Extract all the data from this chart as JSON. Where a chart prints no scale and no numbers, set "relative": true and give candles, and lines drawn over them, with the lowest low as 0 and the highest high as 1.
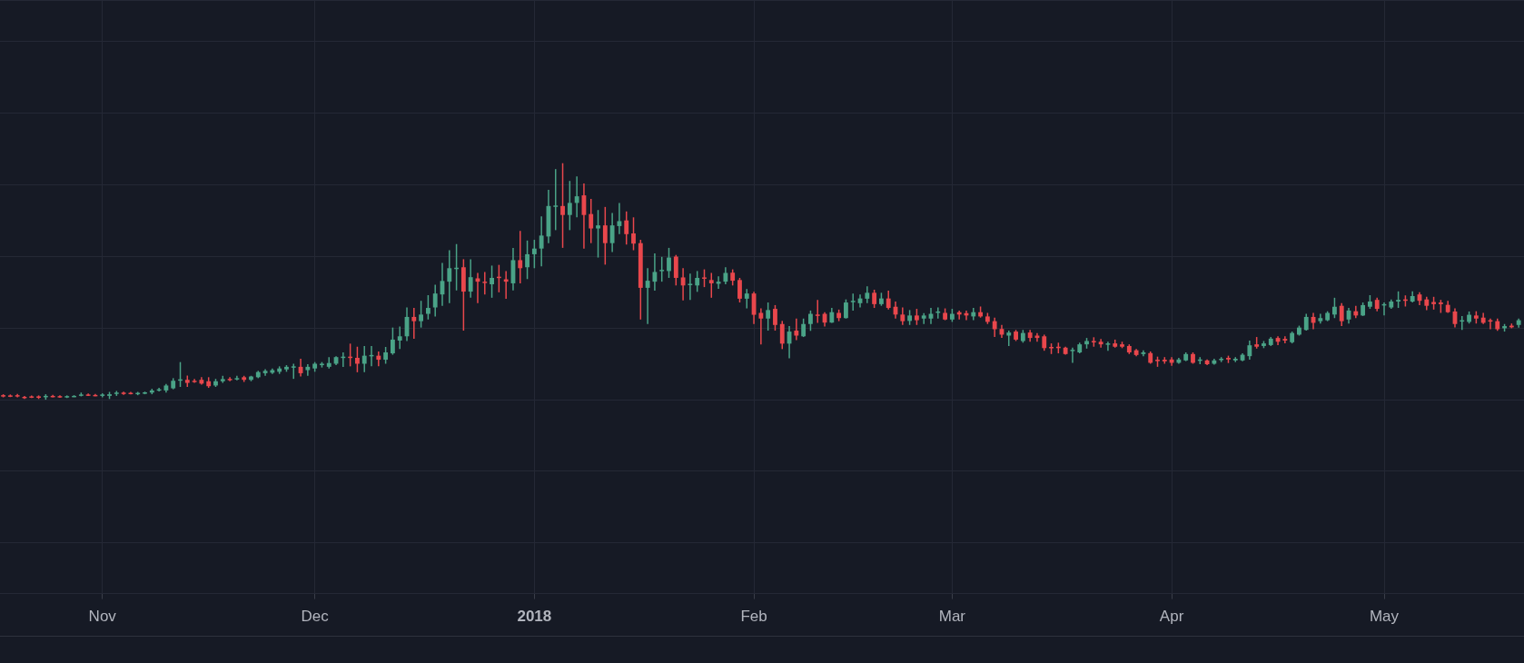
{
  "chart_data": {
    "type": "candlestick",
    "relative": true,
    "grid": true,
    "xlim": [
      "2017-10-17T13:00",
      "2018-05-20T18:00"
    ],
    "xticks": [
      {
        "value": "2017-11-01",
        "label": "Nov"
      },
      {
        "value": "2017-12-01",
        "label": "Dec"
      },
      {
        "value": "2018-01-01",
        "label": "2018"
      },
      {
        "value": "2018-02-01",
        "label": "Feb"
      },
      {
        "value": "2018-03-01",
        "label": "Mar"
      },
      {
        "value": "2018-04-01",
        "label": "Apr"
      },
      {
        "value": "2018-05-01",
        "label": "May"
      }
    ],
    "x": [
      "2017-10-18",
      "2017-10-19",
      "2017-10-20",
      "2017-10-21",
      "2017-10-22",
      "2017-10-23",
      "2017-10-24",
      "2017-10-25",
      "2017-10-26",
      "2017-10-27",
      "2017-10-28",
      "2017-10-29",
      "2017-10-30",
      "2017-10-31",
      "2017-11-01",
      "2017-11-02",
      "2017-11-03",
      "2017-11-04",
      "2017-11-05",
      "2017-11-06",
      "2017-11-07",
      "2017-11-08",
      "2017-11-09",
      "2017-11-10",
      "2017-11-11",
      "2017-11-12",
      "2017-11-13",
      "2017-11-14",
      "2017-11-15",
      "2017-11-16",
      "2017-11-17",
      "2017-11-18",
      "2017-11-19",
      "2017-11-20",
      "2017-11-21",
      "2017-11-22",
      "2017-11-23",
      "2017-11-24",
      "2017-11-25",
      "2017-11-26",
      "2017-11-27",
      "2017-11-28",
      "2017-11-29",
      "2017-11-30",
      "2017-12-01",
      "2017-12-02",
      "2017-12-03",
      "2017-12-04",
      "2017-12-05",
      "2017-12-06",
      "2017-12-07",
      "2017-12-08",
      "2017-12-09",
      "2017-12-10",
      "2017-12-11",
      "2017-12-12",
      "2017-12-13",
      "2017-12-14",
      "2017-12-15",
      "2017-12-16",
      "2017-12-17",
      "2017-12-18",
      "2017-12-19",
      "2017-12-20",
      "2017-12-21",
      "2017-12-22",
      "2017-12-23",
      "2017-12-24",
      "2017-12-25",
      "2017-12-26",
      "2017-12-27",
      "2017-12-28",
      "2017-12-29",
      "2017-12-30",
      "2017-12-31",
      "2018-01-01",
      "2018-01-02",
      "2018-01-03",
      "2018-01-04",
      "2018-01-05",
      "2018-01-06",
      "2018-01-07",
      "2018-01-08",
      "2018-01-09",
      "2018-01-10",
      "2018-01-11",
      "2018-01-12",
      "2018-01-13",
      "2018-01-14",
      "2018-01-15",
      "2018-01-16",
      "2018-01-17",
      "2018-01-18",
      "2018-01-19",
      "2018-01-20",
      "2018-01-21",
      "2018-01-22",
      "2018-01-23",
      "2018-01-24",
      "2018-01-25",
      "2018-01-26",
      "2018-01-27",
      "2018-01-28",
      "2018-01-29",
      "2018-01-30",
      "2018-01-31",
      "2018-02-01",
      "2018-02-02",
      "2018-02-03",
      "2018-02-04",
      "2018-02-05",
      "2018-02-06",
      "2018-02-07",
      "2018-02-08",
      "2018-02-09",
      "2018-02-10",
      "2018-02-11",
      "2018-02-12",
      "2018-02-13",
      "2018-02-14",
      "2018-02-15",
      "2018-02-16",
      "2018-02-17",
      "2018-02-18",
      "2018-02-19",
      "2018-02-20",
      "2018-02-21",
      "2018-02-22",
      "2018-02-23",
      "2018-02-24",
      "2018-02-25",
      "2018-02-26",
      "2018-02-27",
      "2018-02-28",
      "2018-03-01",
      "2018-03-02",
      "2018-03-03",
      "2018-03-04",
      "2018-03-05",
      "2018-03-06",
      "2018-03-07",
      "2018-03-08",
      "2018-03-09",
      "2018-03-10",
      "2018-03-11",
      "2018-03-12",
      "2018-03-13",
      "2018-03-14",
      "2018-03-15",
      "2018-03-16",
      "2018-03-17",
      "2018-03-18",
      "2018-03-19",
      "2018-03-20",
      "2018-03-21",
      "2018-03-22",
      "2018-03-23",
      "2018-03-24",
      "2018-03-25",
      "2018-03-26",
      "2018-03-27",
      "2018-03-28",
      "2018-03-29",
      "2018-03-30",
      "2018-03-31",
      "2018-04-01",
      "2018-04-02",
      "2018-04-03",
      "2018-04-04",
      "2018-04-05",
      "2018-04-06",
      "2018-04-07",
      "2018-04-08",
      "2018-04-09",
      "2018-04-10",
      "2018-04-11",
      "2018-04-12",
      "2018-04-13",
      "2018-04-14",
      "2018-04-15",
      "2018-04-16",
      "2018-04-17",
      "2018-04-18",
      "2018-04-19",
      "2018-04-20",
      "2018-04-21",
      "2018-04-22",
      "2018-04-23",
      "2018-04-24",
      "2018-04-25",
      "2018-04-26",
      "2018-04-27",
      "2018-04-28",
      "2018-04-29",
      "2018-04-30",
      "2018-05-01",
      "2018-05-02",
      "2018-05-03",
      "2018-05-04",
      "2018-05-05",
      "2018-05-06",
      "2018-05-07",
      "2018-05-08",
      "2018-05-09",
      "2018-05-10",
      "2018-05-11",
      "2018-05-12",
      "2018-05-13",
      "2018-05-14",
      "2018-05-15",
      "2018-05-16",
      "2018-05-17",
      "2018-05-18",
      "2018-05-19",
      "2018-05-20"
    ],
    "ohlc": [
      [
        0.019,
        0.023,
        0.01,
        0.014
      ],
      [
        0.018,
        0.022,
        0.011,
        0.014
      ],
      [
        0.019,
        0.024,
        0.01,
        0.014
      ],
      [
        0.012,
        0.016,
        0.003,
        0.008
      ],
      [
        0.014,
        0.018,
        0.007,
        0.011
      ],
      [
        0.014,
        0.018,
        0.003,
        0.008
      ],
      [
        0.014,
        0.023,
        0,
        0.016
      ],
      [
        0.016,
        0.02,
        0.01,
        0.014
      ],
      [
        0.015,
        0.019,
        0.008,
        0.011
      ],
      [
        0.011,
        0.018,
        0.007,
        0.015
      ],
      [
        0.015,
        0.019,
        0.011,
        0.016
      ],
      [
        0.019,
        0.03,
        0.014,
        0.022
      ],
      [
        0.022,
        0.026,
        0.016,
        0.019
      ],
      [
        0.02,
        0.024,
        0.015,
        0.018
      ],
      [
        0.016,
        0.027,
        0.01,
        0.022
      ],
      [
        0.016,
        0.033,
        0.003,
        0.023
      ],
      [
        0.027,
        0.037,
        0.016,
        0.03
      ],
      [
        0.03,
        0.034,
        0.02,
        0.024
      ],
      [
        0.029,
        0.033,
        0.022,
        0.024
      ],
      [
        0.023,
        0.033,
        0.019,
        0.029
      ],
      [
        0.027,
        0.034,
        0.023,
        0.031
      ],
      [
        0.03,
        0.046,
        0.023,
        0.039
      ],
      [
        0.039,
        0.05,
        0.035,
        0.044
      ],
      [
        0.039,
        0.067,
        0.03,
        0.06
      ],
      [
        0.048,
        0.091,
        0.044,
        0.08
      ],
      [
        0.082,
        0.159,
        0.054,
        0.086
      ],
      [
        0.084,
        0.102,
        0.054,
        0.071
      ],
      [
        0.08,
        0.088,
        0.071,
        0.075
      ],
      [
        0.084,
        0.095,
        0.064,
        0.068
      ],
      [
        0.078,
        0.095,
        0.05,
        0.057
      ],
      [
        0.06,
        0.088,
        0.054,
        0.078
      ],
      [
        0.078,
        0.101,
        0.071,
        0.087
      ],
      [
        0.088,
        0.095,
        0.078,
        0.083
      ],
      [
        0.087,
        0.101,
        0.082,
        0.091
      ],
      [
        0.095,
        0.101,
        0.075,
        0.084
      ],
      [
        0.084,
        0.101,
        0.078,
        0.098
      ],
      [
        0.095,
        0.122,
        0.091,
        0.117
      ],
      [
        0.112,
        0.129,
        0.101,
        0.122
      ],
      [
        0.114,
        0.132,
        0.109,
        0.125
      ],
      [
        0.118,
        0.141,
        0.109,
        0.132
      ],
      [
        0.128,
        0.146,
        0.118,
        0.139
      ],
      [
        0.136,
        0.152,
        0.088,
        0.141
      ],
      [
        0.139,
        0.173,
        0.098,
        0.112
      ],
      [
        0.125,
        0.15,
        0.101,
        0.139
      ],
      [
        0.132,
        0.159,
        0.118,
        0.152
      ],
      [
        0.146,
        0.159,
        0.136,
        0.152
      ],
      [
        0.139,
        0.18,
        0.132,
        0.155
      ],
      [
        0.152,
        0.184,
        0.146,
        0.18
      ],
      [
        0.177,
        0.2,
        0.139,
        0.182
      ],
      [
        0.182,
        0.237,
        0.141,
        0.177
      ],
      [
        0.177,
        0.224,
        0.116,
        0.152
      ],
      [
        0.152,
        0.227,
        0.116,
        0.186
      ],
      [
        0.185,
        0.227,
        0.141,
        0.189
      ],
      [
        0.186,
        0.204,
        0.141,
        0.169
      ],
      [
        0.169,
        0.223,
        0.152,
        0.2
      ],
      [
        0.196,
        0.305,
        0.19,
        0.254
      ],
      [
        0.25,
        0.309,
        0.214,
        0.268
      ],
      [
        0.268,
        0.39,
        0.248,
        0.35
      ],
      [
        0.35,
        0.388,
        0.258,
        0.332
      ],
      [
        0.332,
        0.418,
        0.305,
        0.36
      ],
      [
        0.363,
        0.442,
        0.339,
        0.388
      ],
      [
        0.39,
        0.486,
        0.352,
        0.449
      ],
      [
        0.445,
        0.578,
        0.397,
        0.502
      ],
      [
        0.499,
        0.632,
        0.408,
        0.556
      ],
      [
        0.554,
        0.658,
        0.462,
        0.558
      ],
      [
        0.56,
        0.594,
        0.292,
        0.457
      ],
      [
        0.457,
        0.594,
        0.431,
        0.518
      ],
      [
        0.513,
        0.536,
        0.408,
        0.499
      ],
      [
        0.499,
        0.54,
        0.445,
        0.495
      ],
      [
        0.488,
        0.567,
        0.431,
        0.515
      ],
      [
        0.52,
        0.57,
        0.454,
        0.515
      ],
      [
        0.509,
        0.544,
        0.427,
        0.499
      ],
      [
        0.492,
        0.642,
        0.462,
        0.59
      ],
      [
        0.59,
        0.714,
        0.492,
        0.556
      ],
      [
        0.56,
        0.673,
        0.51,
        0.615
      ],
      [
        0.615,
        0.676,
        0.556,
        0.639
      ],
      [
        0.639,
        0.775,
        0.564,
        0.694
      ],
      [
        0.69,
        0.887,
        0.662,
        0.819
      ],
      [
        0.819,
        0.975,
        0.717,
        0.821
      ],
      [
        0.819,
        1,
        0.642,
        0.781
      ],
      [
        0.781,
        0.925,
        0.717,
        0.832
      ],
      [
        0.832,
        0.944,
        0.771,
        0.86
      ],
      [
        0.864,
        0.914,
        0.639,
        0.781
      ],
      [
        0.785,
        0.849,
        0.662,
        0.724
      ],
      [
        0.724,
        0.802,
        0.601,
        0.737
      ],
      [
        0.737,
        0.815,
        0.571,
        0.662
      ],
      [
        0.662,
        0.789,
        0.624,
        0.737
      ],
      [
        0.734,
        0.832,
        0.7,
        0.755
      ],
      [
        0.758,
        0.796,
        0.656,
        0.7
      ],
      [
        0.703,
        0.771,
        0.632,
        0.66
      ],
      [
        0.662,
        0.676,
        0.339,
        0.473
      ],
      [
        0.473,
        0.556,
        0.32,
        0.503
      ],
      [
        0.499,
        0.619,
        0.461,
        0.54
      ],
      [
        0.547,
        0.604,
        0.499,
        0.549
      ],
      [
        0.544,
        0.642,
        0.515,
        0.601
      ],
      [
        0.605,
        0.612,
        0.483,
        0.515
      ],
      [
        0.517,
        0.556,
        0.42,
        0.483
      ],
      [
        0.486,
        0.533,
        0.422,
        0.49
      ],
      [
        0.483,
        0.544,
        0.456,
        0.515
      ],
      [
        0.517,
        0.551,
        0.476,
        0.514
      ],
      [
        0.506,
        0.536,
        0.431,
        0.492
      ],
      [
        0.49,
        0.522,
        0.469,
        0.499
      ],
      [
        0.499,
        0.56,
        0.488,
        0.536
      ],
      [
        0.537,
        0.551,
        0.483,
        0.503
      ],
      [
        0.506,
        0.515,
        0.411,
        0.427
      ],
      [
        0.427,
        0.468,
        0.386,
        0.449
      ],
      [
        0.449,
        0.456,
        0.32,
        0.359
      ],
      [
        0.367,
        0.386,
        0.234,
        0.343
      ],
      [
        0.343,
        0.411,
        0.292,
        0.379
      ],
      [
        0.384,
        0.4,
        0.292,
        0.316
      ],
      [
        0.32,
        0.333,
        0.214,
        0.237
      ],
      [
        0.237,
        0.311,
        0.175,
        0.288
      ],
      [
        0.292,
        0.343,
        0.252,
        0.271
      ],
      [
        0.268,
        0.343,
        0.265,
        0.32
      ],
      [
        0.32,
        0.377,
        0.291,
        0.363
      ],
      [
        0.36,
        0.422,
        0.325,
        0.356
      ],
      [
        0.363,
        0.37,
        0.309,
        0.326
      ],
      [
        0.326,
        0.388,
        0.325,
        0.37
      ],
      [
        0.367,
        0.381,
        0.332,
        0.345
      ],
      [
        0.345,
        0.424,
        0.343,
        0.411
      ],
      [
        0.413,
        0.449,
        0.377,
        0.418
      ],
      [
        0.408,
        0.445,
        0.39,
        0.428
      ],
      [
        0.427,
        0.479,
        0.408,
        0.452
      ],
      [
        0.452,
        0.465,
        0.388,
        0.404
      ],
      [
        0.404,
        0.452,
        0.397,
        0.428
      ],
      [
        0.428,
        0.461,
        0.381,
        0.388
      ],
      [
        0.393,
        0.415,
        0.343,
        0.36
      ],
      [
        0.36,
        0.39,
        0.316,
        0.332
      ],
      [
        0.333,
        0.379,
        0.316,
        0.356
      ],
      [
        0.356,
        0.384,
        0.316,
        0.336
      ],
      [
        0.343,
        0.366,
        0.32,
        0.356
      ],
      [
        0.343,
        0.388,
        0.32,
        0.363
      ],
      [
        0.367,
        0.39,
        0.343,
        0.373
      ],
      [
        0.367,
        0.386,
        0.336,
        0.339
      ],
      [
        0.339,
        0.384,
        0.329,
        0.363
      ],
      [
        0.37,
        0.377,
        0.339,
        0.36
      ],
      [
        0.366,
        0.377,
        0.336,
        0.356
      ],
      [
        0.352,
        0.388,
        0.336,
        0.37
      ],
      [
        0.37,
        0.394,
        0.347,
        0.352
      ],
      [
        0.352,
        0.367,
        0.32,
        0.329
      ],
      [
        0.332,
        0.347,
        0.265,
        0.298
      ],
      [
        0.299,
        0.316,
        0.261,
        0.275
      ],
      [
        0.271,
        0.292,
        0.227,
        0.284
      ],
      [
        0.288,
        0.295,
        0.248,
        0.254
      ],
      [
        0.248,
        0.295,
        0.241,
        0.282
      ],
      [
        0.284,
        0.295,
        0.245,
        0.261
      ],
      [
        0.271,
        0.282,
        0.245,
        0.261
      ],
      [
        0.268,
        0.275,
        0.207,
        0.218
      ],
      [
        0.223,
        0.238,
        0.193,
        0.22
      ],
      [
        0.224,
        0.241,
        0.196,
        0.218
      ],
      [
        0.22,
        0.224,
        0.19,
        0.193
      ],
      [
        0.207,
        0.22,
        0.156,
        0.211
      ],
      [
        0.2,
        0.241,
        0.196,
        0.234
      ],
      [
        0.234,
        0.261,
        0.216,
        0.248
      ],
      [
        0.248,
        0.264,
        0.224,
        0.245
      ],
      [
        0.245,
        0.257,
        0.22,
        0.234
      ],
      [
        0.234,
        0.245,
        0.207,
        0.238
      ],
      [
        0.238,
        0.254,
        0.22,
        0.224
      ],
      [
        0.234,
        0.245,
        0.218,
        0.224
      ],
      [
        0.227,
        0.234,
        0.193,
        0.2
      ],
      [
        0.209,
        0.214,
        0.184,
        0.189
      ],
      [
        0.193,
        0.209,
        0.184,
        0.2
      ],
      [
        0.197,
        0.204,
        0.152,
        0.156
      ],
      [
        0.169,
        0.182,
        0.139,
        0.163
      ],
      [
        0.169,
        0.18,
        0.152,
        0.162
      ],
      [
        0.17,
        0.18,
        0.143,
        0.156
      ],
      [
        0.156,
        0.177,
        0.152,
        0.17
      ],
      [
        0.166,
        0.2,
        0.163,
        0.193
      ],
      [
        0.193,
        0.2,
        0.152,
        0.156
      ],
      [
        0.166,
        0.18,
        0.15,
        0.17
      ],
      [
        0.166,
        0.17,
        0.146,
        0.15
      ],
      [
        0.152,
        0.173,
        0.148,
        0.166
      ],
      [
        0.17,
        0.18,
        0.159,
        0.173
      ],
      [
        0.177,
        0.186,
        0.155,
        0.17
      ],
      [
        0.166,
        0.18,
        0.159,
        0.173
      ],
      [
        0.166,
        0.196,
        0.163,
        0.19
      ],
      [
        0.184,
        0.25,
        0.169,
        0.23
      ],
      [
        0.234,
        0.265,
        0.216,
        0.224
      ],
      [
        0.227,
        0.248,
        0.218,
        0.238
      ],
      [
        0.231,
        0.265,
        0.227,
        0.258
      ],
      [
        0.261,
        0.268,
        0.231,
        0.245
      ],
      [
        0.257,
        0.268,
        0.238,
        0.25
      ],
      [
        0.243,
        0.288,
        0.238,
        0.282
      ],
      [
        0.275,
        0.313,
        0.271,
        0.305
      ],
      [
        0.295,
        0.363,
        0.292,
        0.35
      ],
      [
        0.35,
        0.367,
        0.298,
        0.325
      ],
      [
        0.332,
        0.363,
        0.322,
        0.345
      ],
      [
        0.336,
        0.374,
        0.332,
        0.367
      ],
      [
        0.36,
        0.431,
        0.345,
        0.393
      ],
      [
        0.397,
        0.408,
        0.311,
        0.332
      ],
      [
        0.339,
        0.388,
        0.322,
        0.377
      ],
      [
        0.374,
        0.397,
        0.345,
        0.356
      ],
      [
        0.356,
        0.411,
        0.354,
        0.4
      ],
      [
        0.393,
        0.442,
        0.384,
        0.415
      ],
      [
        0.422,
        0.431,
        0.374,
        0.384
      ],
      [
        0.401,
        0.411,
        0.356,
        0.404
      ],
      [
        0.39,
        0.424,
        0.384,
        0.415
      ],
      [
        0.415,
        0.458,
        0.388,
        0.422
      ],
      [
        0.424,
        0.441,
        0.394,
        0.418
      ],
      [
        0.415,
        0.458,
        0.411,
        0.438
      ],
      [
        0.445,
        0.454,
        0.4,
        0.418
      ],
      [
        0.424,
        0.435,
        0.379,
        0.397
      ],
      [
        0.413,
        0.435,
        0.381,
        0.404
      ],
      [
        0.411,
        0.422,
        0.367,
        0.404
      ],
      [
        0.401,
        0.418,
        0.367,
        0.37
      ],
      [
        0.373,
        0.386,
        0.306,
        0.32
      ],
      [
        0.332,
        0.354,
        0.295,
        0.336
      ],
      [
        0.329,
        0.373,
        0.322,
        0.359
      ],
      [
        0.356,
        0.374,
        0.322,
        0.343
      ],
      [
        0.347,
        0.367,
        0.32,
        0.325
      ],
      [
        0.336,
        0.343,
        0.298,
        0.332
      ],
      [
        0.332,
        0.343,
        0.291,
        0.298
      ],
      [
        0.302,
        0.32,
        0.288,
        0.311
      ],
      [
        0.313,
        0.322,
        0.302,
        0.306
      ],
      [
        0.316,
        0.343,
        0.305,
        0.336
      ]
    ],
    "colors": [
      "#e9474c",
      "#e9474c",
      "#e9474c",
      "#e9474c",
      "#e9474c",
      "#e9474c",
      "#4aa387",
      "#e9474c",
      "#e9474c",
      "#4aa387",
      "#4aa387",
      "#4aa387",
      "#e9474c",
      "#e9474c",
      "#4aa387",
      "#4aa387",
      "#4aa387",
      "#e9474c",
      "#e9474c",
      "#4aa387",
      "#4aa387",
      "#4aa387",
      "#4aa387",
      "#4aa387",
      "#4aa387",
      "#4aa387",
      "#e9474c",
      "#e9474c",
      "#e9474c",
      "#e9474c",
      "#4aa387",
      "#4aa387",
      "#e9474c",
      "#4aa387",
      "#e9474c",
      "#4aa387",
      "#4aa387",
      "#4aa387",
      "#4aa387",
      "#4aa387",
      "#4aa387",
      "#4aa387",
      "#e9474c",
      "#4aa387",
      "#4aa387",
      "#4aa387",
      "#4aa387",
      "#4aa387",
      "#4aa387",
      "#e9474c",
      "#e9474c",
      "#4aa387",
      "#4aa387",
      "#e9474c",
      "#4aa387",
      "#4aa387",
      "#4aa387",
      "#4aa387",
      "#e9474c",
      "#4aa387",
      "#4aa387",
      "#4aa387",
      "#4aa387",
      "#4aa387",
      "#4aa387",
      "#e9474c",
      "#4aa387",
      "#e9474c",
      "#e9474c",
      "#4aa387",
      "#e9474c",
      "#e9474c",
      "#4aa387",
      "#e9474c",
      "#4aa387",
      "#4aa387",
      "#4aa387",
      "#4aa387",
      "#4aa387",
      "#e9474c",
      "#4aa387",
      "#4aa387",
      "#e9474c",
      "#e9474c",
      "#4aa387",
      "#e9474c",
      "#4aa387",
      "#4aa387",
      "#e9474c",
      "#e9474c",
      "#e9474c",
      "#4aa387",
      "#4aa387",
      "#4aa387",
      "#4aa387",
      "#e9474c",
      "#e9474c",
      "#4aa387",
      "#4aa387",
      "#e9474c",
      "#e9474c",
      "#4aa387",
      "#4aa387",
      "#e9474c",
      "#e9474c",
      "#4aa387",
      "#e9474c",
      "#e9474c",
      "#4aa387",
      "#e9474c",
      "#e9474c",
      "#4aa387",
      "#e9474c",
      "#4aa387",
      "#4aa387",
      "#e9474c",
      "#e9474c",
      "#4aa387",
      "#e9474c",
      "#4aa387",
      "#4aa387",
      "#4aa387",
      "#4aa387",
      "#e9474c",
      "#4aa387",
      "#e9474c",
      "#e9474c",
      "#e9474c",
      "#4aa387",
      "#e9474c",
      "#4aa387",
      "#4aa387",
      "#4aa387",
      "#e9474c",
      "#4aa387",
      "#e9474c",
      "#e9474c",
      "#4aa387",
      "#e9474c",
      "#e9474c",
      "#e9474c",
      "#e9474c",
      "#4aa387",
      "#e9474c",
      "#4aa387",
      "#e9474c",
      "#e9474c",
      "#e9474c",
      "#e9474c",
      "#e9474c",
      "#e9474c",
      "#4aa387",
      "#4aa387",
      "#4aa387",
      "#e9474c",
      "#e9474c",
      "#4aa387",
      "#e9474c",
      "#e9474c",
      "#e9474c",
      "#e9474c",
      "#4aa387",
      "#e9474c",
      "#e9474c",
      "#e9474c",
      "#e9474c",
      "#4aa387",
      "#4aa387",
      "#e9474c",
      "#4aa387",
      "#e9474c",
      "#4aa387",
      "#4aa387",
      "#e9474c",
      "#4aa387",
      "#4aa387",
      "#4aa387",
      "#e9474c",
      "#4aa387",
      "#4aa387",
      "#e9474c",
      "#e9474c",
      "#4aa387",
      "#4aa387",
      "#4aa387",
      "#e9474c",
      "#4aa387",
      "#4aa387",
      "#4aa387",
      "#e9474c",
      "#4aa387",
      "#e9474c",
      "#4aa387",
      "#4aa387",
      "#e9474c",
      "#4aa387",
      "#4aa387",
      "#4aa387",
      "#e9474c",
      "#4aa387",
      "#e9474c",
      "#e9474c",
      "#e9474c",
      "#e9474c",
      "#e9474c",
      "#e9474c",
      "#4aa387",
      "#4aa387",
      "#e9474c",
      "#e9474c",
      "#e9474c",
      "#e9474c",
      "#4aa387",
      "#e9474c",
      "#4aa387"
    ]
  }
}
